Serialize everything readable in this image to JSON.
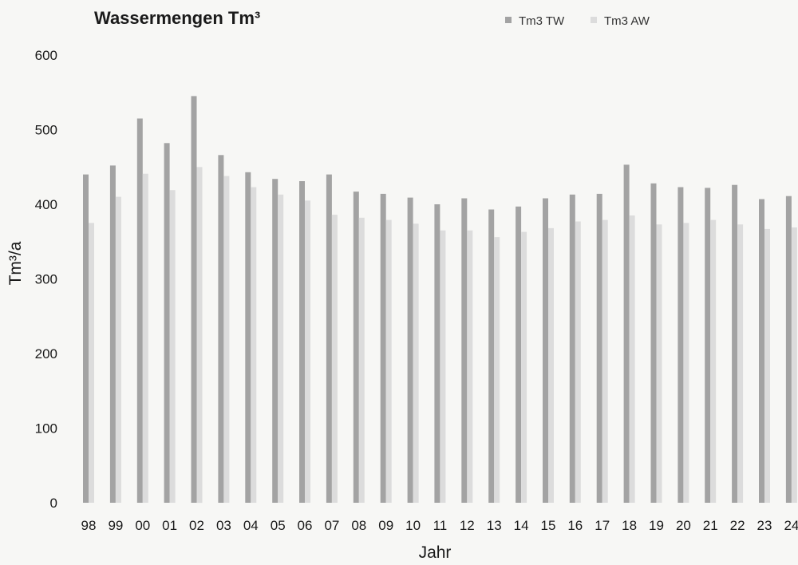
{
  "chart_data": {
    "type": "bar",
    "title": "Wassermengen Tm³",
    "xlabel": "Jahr",
    "ylabel": "Tm³/a",
    "ylim": [
      0,
      600
    ],
    "yticks": [
      0,
      100,
      200,
      300,
      400,
      500,
      600
    ],
    "grid": false,
    "legend_position": "top-right",
    "categories": [
      "98",
      "99",
      "00",
      "01",
      "02",
      "03",
      "04",
      "05",
      "06",
      "07",
      "08",
      "09",
      "10",
      "11",
      "12",
      "13",
      "14",
      "15",
      "16",
      "17",
      "18",
      "19",
      "20",
      "21",
      "22",
      "23",
      "24"
    ],
    "series": [
      {
        "name": "Tm3 TW",
        "color": "#a3a3a3",
        "values": [
          440,
          452,
          515,
          482,
          545,
          466,
          443,
          434,
          431,
          440,
          417,
          414,
          409,
          400,
          408,
          393,
          397,
          408,
          413,
          414,
          453,
          428,
          423,
          422,
          426,
          407,
          411
        ]
      },
      {
        "name": "Tm3 AW",
        "color": "#dcdcdc",
        "values": [
          375,
          410,
          441,
          419,
          450,
          438,
          423,
          413,
          405,
          386,
          382,
          379,
          374,
          365,
          365,
          356,
          363,
          368,
          377,
          379,
          385,
          373,
          375,
          379,
          373,
          367,
          369
        ]
      }
    ]
  }
}
